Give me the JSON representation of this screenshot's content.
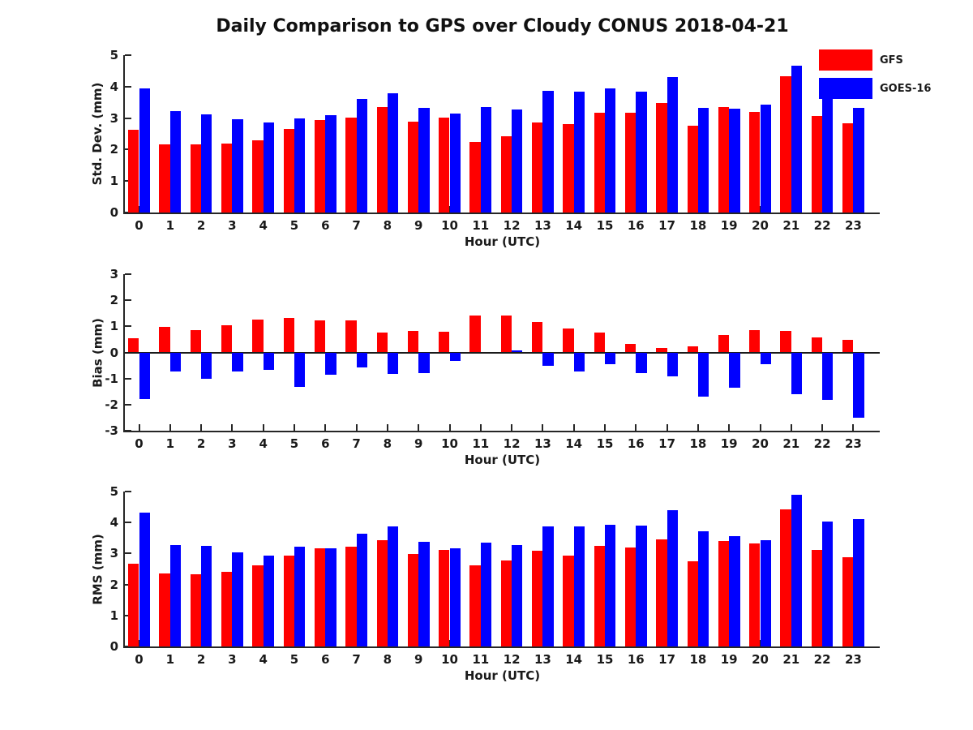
{
  "title": "Daily Comparison to GPS over Cloudy CONUS 2018-04-21",
  "legend": {
    "position": "top-right",
    "items": [
      {
        "label": "GFS",
        "color": "#ff0000"
      },
      {
        "label": "GOES-16",
        "color": "#0000ff"
      }
    ]
  },
  "colors": {
    "gfs": "#ff0000",
    "goes16": "#0000ff",
    "axis": "#262626",
    "text": "#1a1a1a",
    "background": "#ffffff"
  },
  "chart_data": [
    {
      "type": "bar",
      "name": "std-dev",
      "ylabel": "Std. Dev. (mm)",
      "xlabel": "Hour (UTC)",
      "ylim": [
        0,
        5
      ],
      "yticks": [
        0,
        1,
        2,
        3,
        4,
        5
      ],
      "grid": false,
      "categories": [
        "0",
        "1",
        "2",
        "3",
        "4",
        "5",
        "6",
        "7",
        "8",
        "9",
        "10",
        "11",
        "12",
        "13",
        "14",
        "15",
        "16",
        "17",
        "18",
        "19",
        "20",
        "21",
        "22",
        "23"
      ],
      "series": [
        {
          "name": "GFS",
          "color": "#ff0000",
          "values": [
            2.62,
            2.16,
            2.16,
            2.19,
            2.3,
            2.65,
            2.94,
            3.01,
            3.36,
            2.89,
            3.02,
            2.23,
            2.43,
            2.85,
            2.8,
            3.17,
            3.18,
            3.47,
            2.75,
            3.35,
            3.2,
            4.34,
            3.06,
            2.83
          ]
        },
        {
          "name": "GOES-16",
          "color": "#0000ff",
          "values": [
            3.95,
            3.21,
            3.12,
            2.97,
            2.86,
            3.0,
            3.08,
            3.6,
            3.79,
            3.32,
            3.15,
            3.36,
            3.28,
            3.86,
            3.84,
            3.95,
            3.84,
            4.3,
            3.33,
            3.31,
            3.43,
            4.66,
            3.63,
            3.33
          ]
        }
      ]
    },
    {
      "type": "bar",
      "name": "bias",
      "ylabel": "Bias (mm)",
      "xlabel": "Hour (UTC)",
      "ylim": [
        -3,
        3
      ],
      "yticks": [
        -3,
        -2,
        -1,
        0,
        1,
        2,
        3
      ],
      "grid": false,
      "categories": [
        "0",
        "1",
        "2",
        "3",
        "4",
        "5",
        "6",
        "7",
        "8",
        "9",
        "10",
        "11",
        "12",
        "13",
        "14",
        "15",
        "16",
        "17",
        "18",
        "19",
        "20",
        "21",
        "22",
        "23"
      ],
      "series": [
        {
          "name": "GFS",
          "color": "#ff0000",
          "values": [
            0.55,
            0.98,
            0.87,
            1.05,
            1.27,
            1.33,
            1.22,
            1.22,
            0.77,
            0.83,
            0.78,
            1.4,
            1.42,
            1.18,
            0.91,
            0.76,
            0.32,
            0.16,
            0.23,
            0.68,
            0.86,
            0.81,
            0.58,
            0.49
          ]
        },
        {
          "name": "GOES-16",
          "color": "#0000ff",
          "values": [
            -1.79,
            -0.74,
            -1.02,
            -0.72,
            -0.68,
            -1.32,
            -0.86,
            -0.58,
            -0.82,
            -0.8,
            -0.34,
            0.0,
            0.07,
            -0.5,
            -0.72,
            -0.45,
            -0.79,
            -0.92,
            -1.68,
            -1.35,
            -0.45,
            -1.61,
            -1.82,
            -2.49
          ]
        }
      ]
    },
    {
      "type": "bar",
      "name": "rms",
      "ylabel": "RMS (mm)",
      "xlabel": "Hour (UTC)",
      "ylim": [
        0,
        5
      ],
      "yticks": [
        0,
        1,
        2,
        3,
        4,
        5
      ],
      "grid": false,
      "categories": [
        "0",
        "1",
        "2",
        "3",
        "4",
        "5",
        "6",
        "7",
        "8",
        "9",
        "10",
        "11",
        "12",
        "13",
        "14",
        "15",
        "16",
        "17",
        "18",
        "19",
        "20",
        "21",
        "22",
        "23"
      ],
      "series": [
        {
          "name": "GFS",
          "color": "#ff0000",
          "values": [
            2.67,
            2.35,
            2.33,
            2.4,
            2.63,
            2.93,
            3.17,
            3.22,
            3.42,
            2.98,
            3.11,
            2.63,
            2.78,
            3.08,
            2.92,
            3.25,
            3.2,
            3.46,
            2.76,
            3.4,
            3.32,
            4.43,
            3.11,
            2.89
          ]
        },
        {
          "name": "GOES-16",
          "color": "#0000ff",
          "values": [
            4.32,
            3.27,
            3.24,
            3.04,
            2.94,
            3.22,
            3.17,
            3.63,
            3.87,
            3.37,
            3.16,
            3.34,
            3.26,
            3.87,
            3.88,
            3.93,
            3.91,
            4.39,
            3.71,
            3.55,
            3.44,
            4.89,
            4.04,
            4.11
          ]
        }
      ]
    }
  ]
}
